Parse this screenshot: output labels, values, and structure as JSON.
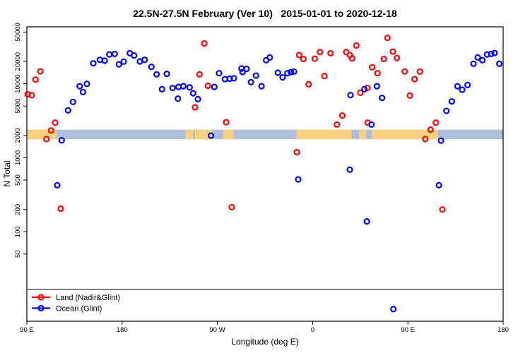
{
  "chart_data": {
    "type": "scatter",
    "title": "22.5N-27.5N February (Ver 10)   2015-01-01 to 2020-12-18",
    "xlabel": "Longitude (deg E)",
    "ylabel": "N Total",
    "x_axis": {
      "min": 90,
      "max": 540,
      "ticks": [
        {
          "lon": 90,
          "label": "90 E"
        },
        {
          "lon": 180,
          "label": "180"
        },
        {
          "lon": 270,
          "label": "90 W"
        },
        {
          "lon": 360,
          "label": "0"
        },
        {
          "lon": 450,
          "label": "90 E"
        },
        {
          "lon": 540,
          "label": "180"
        }
      ]
    },
    "y_axis": {
      "scale": "log",
      "ticks": [
        50,
        100,
        200,
        500,
        1000,
        2000,
        5000,
        10000,
        20000,
        50000
      ]
    },
    "legend": [
      {
        "name": "Land (Nadir&Glint)",
        "color": "#ff0000"
      },
      {
        "name": "Ocean (Glint)",
        "color": "#0000ff"
      }
    ],
    "surface_band": {
      "value_top": 2400,
      "value_bottom": 1780,
      "colors": {
        "land": "#fad27f",
        "ocean": "#adbfdb"
      },
      "segments": [
        [
          90,
          118,
          "land"
        ],
        [
          118,
          240,
          "ocean"
        ],
        [
          240,
          247,
          "land"
        ],
        [
          247,
          249,
          "ocean"
        ],
        [
          249,
          265,
          "land"
        ],
        [
          265,
          275.5,
          "ocean"
        ],
        [
          275.5,
          285,
          "land"
        ],
        [
          285,
          345,
          "ocean"
        ],
        [
          345,
          396.5,
          "land"
        ],
        [
          396.5,
          404,
          "ocean"
        ],
        [
          404,
          410.5,
          "land"
        ],
        [
          410.5,
          416,
          "ocean"
        ],
        [
          416,
          478.5,
          "land"
        ],
        [
          478.5,
          540,
          "ocean"
        ]
      ]
    },
    "series": [
      {
        "name": "Land (Nadir&Glint)",
        "color": "#ff0000",
        "key": "land",
        "points": [
          [
            90.7,
            7200
          ],
          [
            94.5,
            7000
          ],
          [
            98.2,
            11400
          ],
          [
            102.7,
            14700
          ],
          [
            108.5,
            1790
          ],
          [
            112.9,
            2340
          ],
          [
            116.7,
            2980
          ],
          [
            122,
            205
          ],
          [
            248.9,
            4800
          ],
          [
            253.1,
            13400
          ],
          [
            257.6,
            35000
          ],
          [
            261.1,
            9400
          ],
          [
            278.3,
            3020
          ],
          [
            283.6,
            215
          ],
          [
            345.1,
            1190
          ],
          [
            347.3,
            24400
          ],
          [
            351.3,
            21600
          ],
          [
            356.2,
            9840
          ],
          [
            362,
            21800
          ],
          [
            366.9,
            26800
          ],
          [
            371.1,
            12700
          ],
          [
            376.9,
            25900
          ],
          [
            382.9,
            2810
          ],
          [
            388,
            3720
          ],
          [
            391.8,
            26800
          ],
          [
            395.1,
            24400
          ],
          [
            397.3,
            22000
          ],
          [
            401.3,
            32900
          ],
          [
            405.1,
            7560
          ],
          [
            411.8,
            8810
          ],
          [
            411.9,
            2980
          ],
          [
            416.3,
            16700
          ],
          [
            421.3,
            13900
          ],
          [
            427.3,
            21600
          ],
          [
            430.7,
            41700
          ],
          [
            435.8,
            27200
          ],
          [
            439.6,
            22300
          ],
          [
            447,
            14600
          ],
          [
            451.9,
            6920
          ],
          [
            456.3,
            11550
          ],
          [
            461.4,
            14600
          ],
          [
            466.4,
            1790
          ],
          [
            471.4,
            2400
          ],
          [
            476.4,
            2980
          ],
          [
            482.6,
            200
          ]
        ]
      },
      {
        "name": "Ocean (Glint)",
        "color": "#0000ff",
        "key": "ocean",
        "points": [
          [
            118.7,
            425
          ],
          [
            122.9,
            1720
          ],
          [
            128.9,
            4370
          ],
          [
            133.6,
            5680
          ],
          [
            139.9,
            9270
          ],
          [
            143,
            7730
          ],
          [
            146.7,
            9990
          ],
          [
            152.8,
            18900
          ],
          [
            159,
            21100
          ],
          [
            163.6,
            20500
          ],
          [
            167.9,
            24900
          ],
          [
            173,
            25300
          ],
          [
            177,
            18300
          ],
          [
            181.5,
            19900
          ],
          [
            187.3,
            25900
          ],
          [
            191.3,
            24100
          ],
          [
            196.8,
            20000
          ],
          [
            201.3,
            21100
          ],
          [
            207.7,
            16900
          ],
          [
            212.6,
            13400
          ],
          [
            217.7,
            8440
          ],
          [
            222.2,
            13600
          ],
          [
            227.7,
            8760
          ],
          [
            232.7,
            6300
          ],
          [
            233.3,
            9070
          ],
          [
            237.8,
            9270
          ],
          [
            243.8,
            8940
          ],
          [
            247.1,
            7440
          ],
          [
            251.6,
            6200
          ],
          [
            263.9,
            1990
          ],
          [
            267.1,
            9070
          ],
          [
            271.6,
            13900
          ],
          [
            277.2,
            11550
          ],
          [
            281.6,
            11700
          ],
          [
            285.6,
            11850
          ],
          [
            292.8,
            16100
          ],
          [
            293.8,
            14400
          ],
          [
            297.6,
            15900
          ],
          [
            301.7,
            10500
          ],
          [
            306.5,
            12900
          ],
          [
            311.7,
            9270
          ],
          [
            316.1,
            20800
          ],
          [
            319.5,
            22700
          ],
          [
            327.2,
            14100
          ],
          [
            331.7,
            12200
          ],
          [
            336.2,
            13900
          ],
          [
            339.5,
            14400
          ],
          [
            342.4,
            14600
          ],
          [
            346.4,
            510
          ],
          [
            395.1,
            690
          ],
          [
            395.8,
            7030
          ],
          [
            408.9,
            8440
          ],
          [
            411.2,
            138
          ],
          [
            415.6,
            2810
          ],
          [
            420.7,
            9270
          ],
          [
            425.6,
            6440
          ],
          [
            436.3,
            9
          ],
          [
            479.3,
            425
          ],
          [
            481.3,
            1700
          ],
          [
            486.4,
            4300
          ],
          [
            491.5,
            5770
          ],
          [
            496.8,
            9270
          ],
          [
            501.3,
            8300
          ],
          [
            506.4,
            9630
          ],
          [
            512,
            18600
          ],
          [
            516,
            22700
          ],
          [
            520.4,
            20800
          ],
          [
            524.8,
            24900
          ],
          [
            528.6,
            25300
          ],
          [
            531.9,
            26000
          ],
          [
            536.4,
            18600
          ]
        ]
      }
    ]
  }
}
